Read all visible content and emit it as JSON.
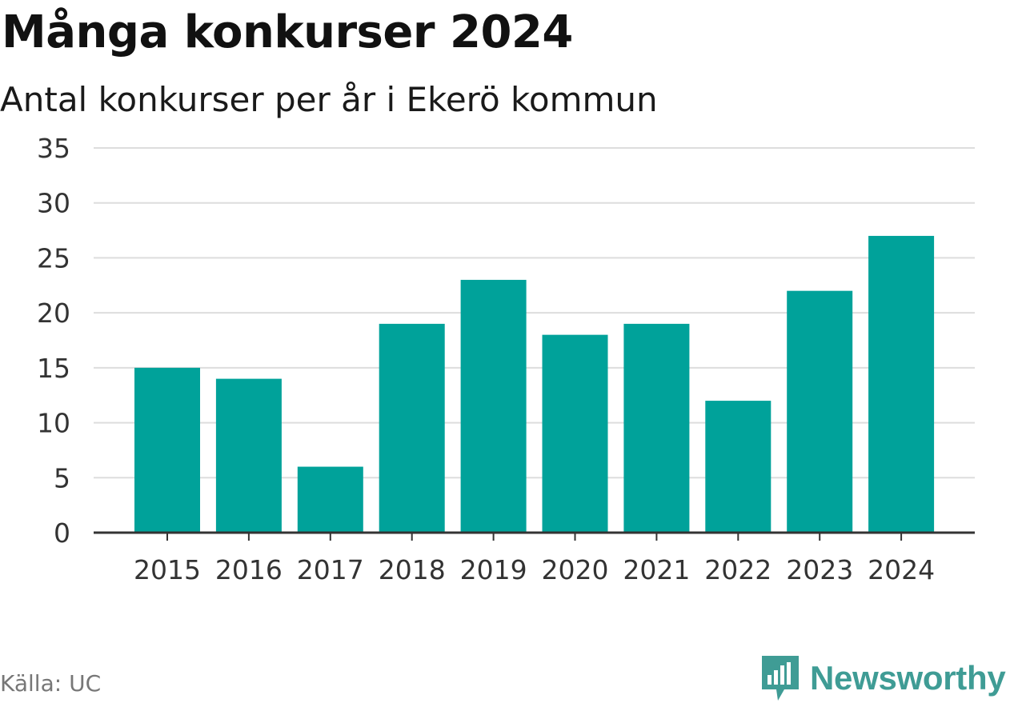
{
  "title": "Många konkurser 2024",
  "subtitle": "Antal konkurser per år i Ekerö kommun",
  "source": "Källa: UC",
  "brand": {
    "name": "Newsworthy",
    "icon": "newsworthy-logo-icon",
    "color": "#3f9c95"
  },
  "chart_data": {
    "type": "bar",
    "categories": [
      "2015",
      "2016",
      "2017",
      "2018",
      "2019",
      "2020",
      "2021",
      "2022",
      "2023",
      "2024"
    ],
    "values": [
      15,
      14,
      6,
      19,
      23,
      18,
      19,
      12,
      22,
      27
    ],
    "ylim": [
      0,
      35
    ],
    "yticks": [
      "0",
      "5",
      "10",
      "15",
      "20",
      "25",
      "30",
      "35"
    ],
    "grid": true,
    "bar_color": "#00a29a",
    "axis_color": "#333333",
    "grid_color": "#dddddd",
    "tick_label_color": "#333333"
  }
}
